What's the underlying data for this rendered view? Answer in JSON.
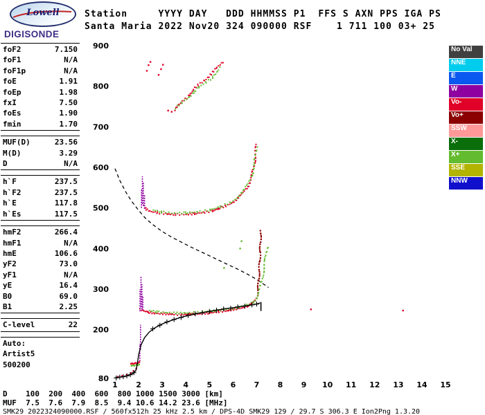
{
  "logo": {
    "oval_text": "Lowell",
    "name": "DIGISONDE"
  },
  "header": {
    "line1": "Station     YYYY DAY   DDD HHMMSS P1  FFS S AXN PPS IGA PS",
    "line2": "Santa Maria 2022 Nov20 324 090000 RSF    1 711 100 03+ 25"
  },
  "params": {
    "groups": [
      {
        "rows": [
          [
            "foF2",
            "7.150"
          ],
          [
            "foF1",
            "N/A"
          ],
          [
            "foF1p",
            "N/A"
          ],
          [
            "foE",
            "1.91"
          ],
          [
            "foEp",
            "1.98"
          ],
          [
            "fxI",
            "7.50"
          ],
          [
            "foEs",
            "1.90"
          ],
          [
            "fmin",
            "1.70"
          ]
        ]
      },
      {
        "rows": [
          [
            "MUF(D)",
            "23.56"
          ],
          [
            "M(D)",
            "3.29"
          ],
          [
            "D",
            "N/A"
          ]
        ]
      },
      {
        "rows": [
          [
            "h`F",
            "237.5"
          ],
          [
            "h`F2",
            "237.5"
          ],
          [
            "h`E",
            "117.8"
          ],
          [
            "h`Es",
            "117.5"
          ]
        ]
      },
      {
        "rows": [
          [
            "hmF2",
            "266.4"
          ],
          [
            "hmF1",
            "N/A"
          ],
          [
            "hmE",
            "106.6"
          ],
          [
            "yF2",
            "73.0"
          ],
          [
            "yF1",
            "N/A"
          ],
          [
            "yE",
            "16.4"
          ],
          [
            "B0",
            "69.0"
          ],
          [
            "B1",
            "2.25"
          ]
        ]
      },
      {
        "rows": [
          [
            "C-level",
            "22"
          ]
        ]
      }
    ],
    "auto": {
      "lines": [
        "Auto:",
        "Artist5",
        "500200"
      ]
    }
  },
  "legend": {
    "items": [
      {
        "label": "No Val",
        "color": "#404040"
      },
      {
        "label": "NNE",
        "color": "#00cdee"
      },
      {
        "label": "E",
        "color": "#0a58f0"
      },
      {
        "label": "W",
        "color": "#8e00a0"
      },
      {
        "label": "Vo-",
        "color": "#e00028"
      },
      {
        "label": "Vo+",
        "color": "#8b0000"
      },
      {
        "label": "SSW",
        "color": "#ff9898"
      },
      {
        "label": "X-",
        "color": "#0a6e0a"
      },
      {
        "label": "X+",
        "color": "#63bb2f"
      },
      {
        "label": "SSE",
        "color": "#b2b400"
      },
      {
        "label": "NNW",
        "color": "#1010cc"
      }
    ]
  },
  "bottom": {
    "d_line": "D    100  200  400  600  800 1000 1500 3000 [km]",
    "muf_line": "MUF  7.5  7.6  7.9  8.5  9.4 10.6 14.2 23.6 [MHz]",
    "status": "SMK29_2022324090000.RSF / 560fx512h 25 kHz 2.5 km / DPS-4D SMK29 129 / 29.7 S 306.3 E Ion2Png 1.3.20"
  },
  "chart_data": {
    "type": "scatter",
    "title": "",
    "xlabel_unit": "MHz",
    "ylabel_unit": "km",
    "xlim": [
      1,
      15
    ],
    "ylim": [
      80,
      900
    ],
    "x_ticks": [
      1,
      2,
      3,
      4,
      5,
      6,
      7,
      8,
      9,
      10,
      11,
      12,
      13,
      14,
      15
    ],
    "y_ticks": [
      900,
      800,
      700,
      600,
      500,
      400,
      300,
      200,
      80
    ],
    "grid": false,
    "legend_position": "right",
    "series": [
      {
        "name": "muf-transmission-curve",
        "kind": "dashed_line",
        "color": "#000000",
        "width": 1.3,
        "points": [
          [
            1.0,
            597
          ],
          [
            1.2,
            568
          ],
          [
            1.45,
            540
          ],
          [
            1.7,
            517
          ],
          [
            2.0,
            494
          ],
          [
            2.3,
            474
          ],
          [
            2.6,
            459
          ],
          [
            3.0,
            442
          ],
          [
            3.4,
            428
          ],
          [
            3.8,
            416
          ],
          [
            4.2,
            404
          ],
          [
            4.6,
            393
          ],
          [
            5.0,
            382
          ],
          [
            5.4,
            371
          ],
          [
            5.8,
            360
          ],
          [
            6.2,
            349
          ],
          [
            6.6,
            337
          ],
          [
            7.0,
            324
          ],
          [
            7.3,
            312
          ],
          [
            7.5,
            304
          ]
        ]
      },
      {
        "name": "f2-trace-o",
        "kind": "trace",
        "color": "#e00028",
        "spacing": 2.6,
        "jitter": 1.2,
        "points": [
          [
            2.18,
            505
          ],
          [
            2.3,
            497
          ],
          [
            2.5,
            492
          ],
          [
            2.8,
            488
          ],
          [
            3.2,
            485
          ],
          [
            3.6,
            484
          ],
          [
            4.0,
            484
          ],
          [
            4.4,
            486
          ],
          [
            4.8,
            489
          ],
          [
            5.1,
            493
          ],
          [
            5.4,
            498
          ],
          [
            5.7,
            505
          ],
          [
            5.95,
            513
          ],
          [
            6.2,
            523
          ],
          [
            6.4,
            535
          ],
          [
            6.6,
            551
          ],
          [
            6.75,
            570
          ],
          [
            6.85,
            592
          ],
          [
            6.92,
            617
          ],
          [
            6.97,
            643
          ],
          [
            7.0,
            660
          ]
        ]
      },
      {
        "name": "f2-trace-x",
        "kind": "trace",
        "color": "#63bb2f",
        "spacing": 3.4,
        "jitter": 1.2,
        "points": [
          [
            2.6,
            495
          ],
          [
            3.0,
            490
          ],
          [
            3.5,
            487
          ],
          [
            4.0,
            488
          ],
          [
            4.5,
            490
          ],
          [
            5.0,
            495
          ],
          [
            5.5,
            503
          ],
          [
            5.9,
            514
          ],
          [
            6.2,
            527
          ],
          [
            6.45,
            542
          ],
          [
            6.65,
            560
          ],
          [
            6.8,
            582
          ],
          [
            6.9,
            606
          ],
          [
            6.97,
            632
          ],
          [
            7.02,
            655
          ]
        ]
      },
      {
        "name": "f3-trace-o",
        "kind": "trace",
        "color": "#e00028",
        "spacing": 3.0,
        "jitter": 1.4,
        "points": [
          [
            3.55,
            742
          ],
          [
            3.75,
            755
          ],
          [
            3.95,
            768
          ],
          [
            4.15,
            780
          ],
          [
            4.35,
            792
          ],
          [
            4.55,
            803
          ],
          [
            4.75,
            814
          ],
          [
            4.95,
            824
          ],
          [
            5.15,
            834
          ],
          [
            5.35,
            846
          ],
          [
            5.5,
            856
          ],
          [
            5.6,
            864
          ]
        ]
      },
      {
        "name": "f3-trace-x",
        "kind": "trace",
        "color": "#63bb2f",
        "spacing": 3.6,
        "jitter": 1.4,
        "points": [
          [
            3.6,
            746
          ],
          [
            3.85,
            760
          ],
          [
            4.1,
            773
          ],
          [
            4.35,
            786
          ],
          [
            4.6,
            798
          ],
          [
            4.85,
            810
          ],
          [
            5.1,
            822
          ],
          [
            5.35,
            836
          ],
          [
            5.55,
            850
          ]
        ]
      },
      {
        "name": "f3-stray-echoes",
        "kind": "scatter",
        "color": "#e00028",
        "points": [
          [
            2.35,
            838
          ],
          [
            2.42,
            852
          ],
          [
            2.5,
            860
          ],
          [
            2.85,
            828
          ],
          [
            2.95,
            842
          ],
          [
            3.03,
            853
          ],
          [
            3.25,
            740
          ],
          [
            3.4,
            737
          ]
        ]
      },
      {
        "name": "f-trace-o",
        "kind": "trace",
        "color": "#e00028",
        "spacing": 2.2,
        "jitter": 1.0,
        "points": [
          [
            2.05,
            250
          ],
          [
            2.2,
            246
          ],
          [
            2.4,
            243
          ],
          [
            2.7,
            240
          ],
          [
            3.0,
            239
          ],
          [
            3.4,
            238
          ],
          [
            3.8,
            237
          ],
          [
            4.2,
            238
          ],
          [
            4.6,
            239
          ],
          [
            5.0,
            241
          ],
          [
            5.4,
            244
          ],
          [
            5.8,
            247
          ],
          [
            6.1,
            250
          ],
          [
            6.4,
            254
          ],
          [
            6.6,
            258
          ],
          [
            6.8,
            264
          ],
          [
            6.95,
            272
          ],
          [
            7.02,
            282
          ]
        ]
      },
      {
        "name": "f-trace-o-rise",
        "kind": "trace",
        "color": "#8b0000",
        "spacing": 2.0,
        "jitter": 0.9,
        "points": [
          [
            7.02,
            282
          ],
          [
            7.06,
            302
          ],
          [
            7.09,
            324
          ],
          [
            7.11,
            346
          ],
          [
            7.13,
            368
          ],
          [
            7.15,
            392
          ],
          [
            7.16,
            414
          ],
          [
            7.17,
            432
          ],
          [
            7.18,
            446
          ]
        ]
      },
      {
        "name": "f-trace-x",
        "kind": "trace",
        "color": "#63bb2f",
        "spacing": 3.0,
        "jitter": 1.1,
        "points": [
          [
            2.45,
            247
          ],
          [
            2.8,
            244
          ],
          [
            3.2,
            242
          ],
          [
            3.6,
            241
          ],
          [
            4.0,
            241
          ],
          [
            4.4,
            242
          ],
          [
            4.8,
            244
          ],
          [
            5.2,
            246
          ],
          [
            5.6,
            249
          ],
          [
            6.0,
            252
          ],
          [
            6.3,
            256
          ],
          [
            6.6,
            261
          ],
          [
            6.85,
            268
          ],
          [
            7.0,
            278
          ],
          [
            7.1,
            292
          ],
          [
            7.18,
            310
          ],
          [
            7.25,
            330
          ],
          [
            7.31,
            352
          ],
          [
            7.37,
            374
          ],
          [
            7.42,
            394
          ],
          [
            7.46,
            408
          ]
        ]
      },
      {
        "name": "es-trace-o",
        "kind": "scatter",
        "color": "#e00028",
        "points": [
          [
            1.68,
            116
          ],
          [
            1.73,
            117
          ],
          [
            1.78,
            115
          ],
          [
            1.83,
            117
          ],
          [
            1.88,
            118
          ],
          [
            1.93,
            116
          ],
          [
            1.98,
            118
          ],
          [
            2.03,
            120
          ]
        ]
      },
      {
        "name": "es-trace-x",
        "kind": "scatter",
        "color": "#63bb2f",
        "points": [
          [
            1.7,
            111
          ],
          [
            1.76,
            112
          ],
          [
            1.82,
            111
          ],
          [
            1.9,
            113
          ],
          [
            1.96,
            112
          ],
          [
            2.02,
            114
          ]
        ]
      },
      {
        "name": "e-region-echoes",
        "kind": "scatter",
        "color": "#e00028",
        "points": [
          [
            1.12,
            84
          ],
          [
            1.3,
            86
          ],
          [
            1.5,
            89
          ],
          [
            1.66,
            93
          ],
          [
            1.78,
            98
          ],
          [
            1.9,
            104
          ]
        ]
      },
      {
        "name": "doppler-w-cusp-f1",
        "kind": "vlines",
        "color": "#8e00a0",
        "dash": "2 1.5",
        "lines": [
          [
            2.05,
            122,
            165
          ],
          [
            2.08,
            150,
            212
          ],
          [
            2.06,
            245,
            300
          ],
          [
            2.1,
            255,
            332
          ],
          [
            2.14,
            250,
            312
          ],
          [
            2.18,
            248,
            284
          ]
        ]
      },
      {
        "name": "doppler-w-cusp-f2",
        "kind": "vlines",
        "color": "#8e00a0",
        "dash": "2 1.5",
        "lines": [
          [
            2.12,
            500,
            546
          ],
          [
            2.16,
            510,
            578
          ],
          [
            2.2,
            505,
            562
          ],
          [
            2.25,
            498,
            532
          ]
        ]
      },
      {
        "name": "stray-echoes-o",
        "kind": "scatter",
        "color": "#e00028",
        "points": [
          [
            9.3,
            250
          ],
          [
            13.2,
            247
          ]
        ]
      },
      {
        "name": "stray-echoes-x",
        "kind": "scatter",
        "color": "#63bb2f",
        "points": [
          [
            5.62,
            352
          ],
          [
            6.3,
            400
          ],
          [
            6.36,
            418
          ]
        ]
      },
      {
        "name": "true-height-profile",
        "kind": "line",
        "color": "#000000",
        "width": 1.4,
        "points": [
          [
            1.0,
            81
          ],
          [
            1.1,
            82
          ],
          [
            1.2,
            83
          ],
          [
            1.35,
            84
          ],
          [
            1.5,
            86
          ],
          [
            1.65,
            89
          ],
          [
            1.78,
            93
          ],
          [
            1.88,
            99
          ],
          [
            1.91,
            106
          ],
          [
            1.95,
            118
          ],
          [
            2.0,
            138
          ],
          [
            2.1,
            162
          ],
          [
            2.25,
            180
          ],
          [
            2.45,
            194
          ],
          [
            2.7,
            205
          ],
          [
            3.0,
            214
          ],
          [
            3.3,
            221
          ],
          [
            3.6,
            227
          ],
          [
            3.9,
            232
          ],
          [
            4.2,
            236
          ],
          [
            4.5,
            240
          ],
          [
            4.8,
            243
          ],
          [
            5.1,
            246
          ],
          [
            5.4,
            249
          ],
          [
            5.7,
            252
          ],
          [
            6.0,
            254
          ],
          [
            6.3,
            257
          ],
          [
            6.6,
            259
          ],
          [
            6.9,
            262
          ],
          [
            7.05,
            264
          ],
          [
            7.15,
            266
          ]
        ]
      },
      {
        "name": "profile-plus-marks",
        "kind": "plus",
        "color": "#000000",
        "size": 7,
        "points": [
          [
            1.05,
            81
          ],
          [
            1.2,
            83
          ],
          [
            1.35,
            84
          ],
          [
            1.5,
            86
          ],
          [
            1.65,
            89
          ],
          [
            1.8,
            94
          ],
          [
            2.6,
            202
          ],
          [
            2.9,
            211
          ],
          [
            3.2,
            219
          ],
          [
            3.5,
            225
          ],
          [
            3.8,
            230
          ],
          [
            4.1,
            235
          ],
          [
            4.4,
            239
          ],
          [
            4.7,
            242
          ],
          [
            5.0,
            245
          ],
          [
            5.3,
            248
          ],
          [
            5.6,
            251
          ],
          [
            5.9,
            253
          ],
          [
            6.2,
            256
          ],
          [
            6.5,
            258
          ],
          [
            6.8,
            261
          ],
          [
            7.0,
            263
          ]
        ]
      },
      {
        "name": "profile-peak-marker",
        "kind": "vlines",
        "color": "#000000",
        "lines": [
          [
            7.18,
            246,
            268
          ]
        ]
      }
    ]
  }
}
